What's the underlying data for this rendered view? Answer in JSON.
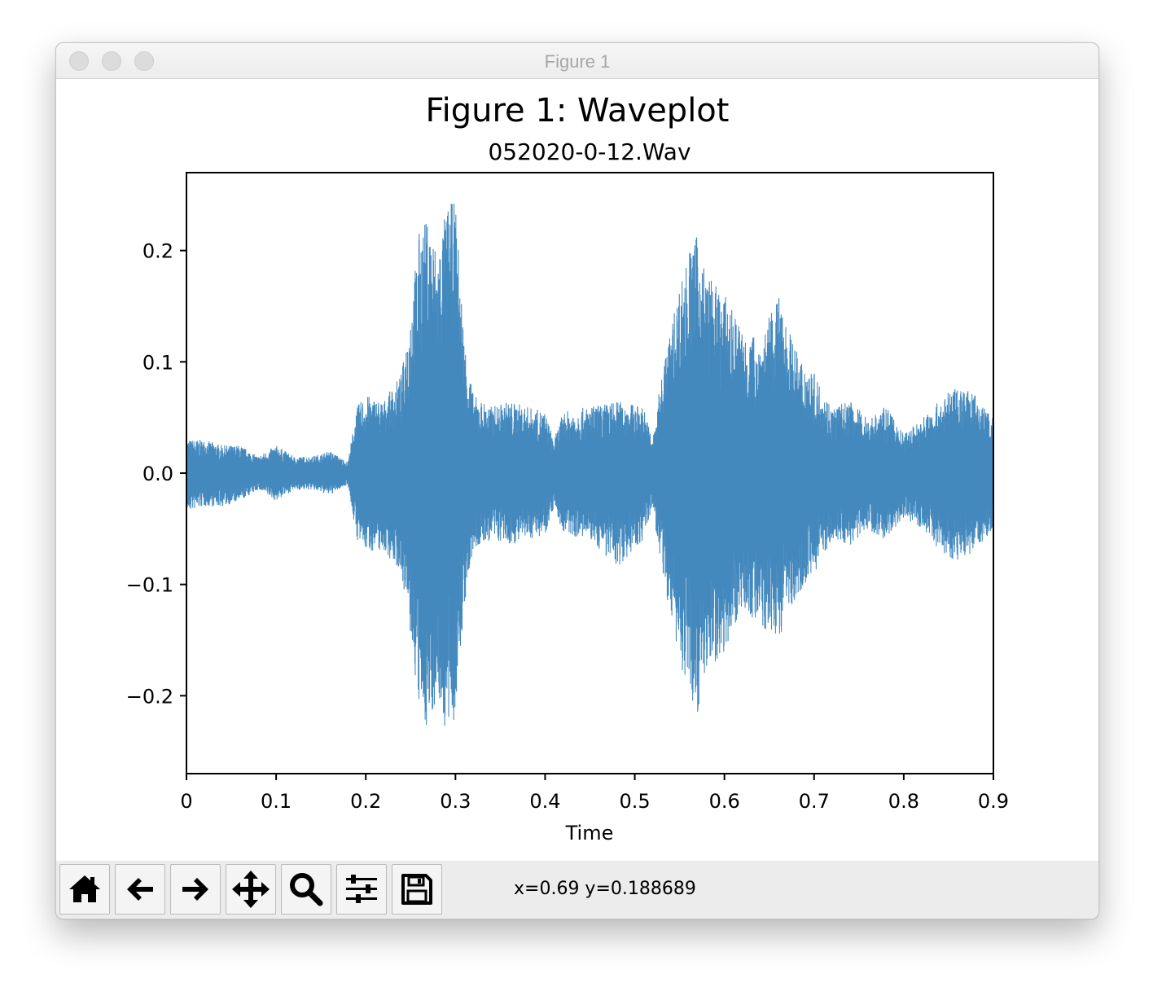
{
  "window": {
    "title": "Figure 1"
  },
  "figure": {
    "suptitle": "Figure 1: Waveplot"
  },
  "toolbar": {
    "buttons": [
      {
        "name": "home",
        "icon": "home-icon"
      },
      {
        "name": "back",
        "icon": "arrow-left-icon"
      },
      {
        "name": "forward",
        "icon": "arrow-right-icon"
      },
      {
        "name": "pan",
        "icon": "move-icon"
      },
      {
        "name": "zoom",
        "icon": "magnifier-icon"
      },
      {
        "name": "configure-subplots",
        "icon": "sliders-icon"
      },
      {
        "name": "save",
        "icon": "floppy-disk-icon"
      }
    ],
    "coordinates": "x=0.69 y=0.188689"
  },
  "chart_data": {
    "type": "line",
    "title": "052020-0-12.Wav",
    "xlabel": "Time",
    "ylabel": "",
    "xlim": [
      0,
      0.9
    ],
    "ylim": [
      -0.27,
      0.27
    ],
    "xticks": [
      "0",
      "0.1",
      "0.2",
      "0.3",
      "0.4",
      "0.5",
      "0.6",
      "0.7",
      "0.8",
      "0.9"
    ],
    "xtick_values": [
      0,
      0.1,
      0.2,
      0.3,
      0.4,
      0.5,
      0.6,
      0.7,
      0.8,
      0.9
    ],
    "yticks": [
      "−0.2",
      "−0.1",
      "0.0",
      "0.1",
      "0.2"
    ],
    "ytick_values": [
      -0.2,
      -0.1,
      0.0,
      0.1,
      0.2
    ],
    "grid": false,
    "color": "#4489be",
    "series": [
      {
        "envelope": {
          "x": [
            0.0,
            0.02,
            0.04,
            0.06,
            0.08,
            0.1,
            0.12,
            0.14,
            0.16,
            0.18,
            0.19,
            0.2,
            0.22,
            0.24,
            0.25,
            0.26,
            0.27,
            0.28,
            0.29,
            0.3,
            0.31,
            0.32,
            0.34,
            0.36,
            0.38,
            0.4,
            0.41,
            0.42,
            0.45,
            0.48,
            0.51,
            0.52,
            0.53,
            0.54,
            0.55,
            0.56,
            0.57,
            0.58,
            0.6,
            0.62,
            0.64,
            0.66,
            0.68,
            0.7,
            0.72,
            0.74,
            0.76,
            0.78,
            0.8,
            0.82,
            0.84,
            0.86,
            0.88,
            0.9
          ],
          "max": [
            0.03,
            0.03,
            0.025,
            0.025,
            0.015,
            0.025,
            0.015,
            0.015,
            0.02,
            0.01,
            0.06,
            0.07,
            0.065,
            0.09,
            0.15,
            0.22,
            0.23,
            0.2,
            0.24,
            0.245,
            0.12,
            0.07,
            0.06,
            0.065,
            0.06,
            0.055,
            0.03,
            0.055,
            0.06,
            0.065,
            0.06,
            0.03,
            0.09,
            0.13,
            0.17,
            0.2,
            0.215,
            0.18,
            0.16,
            0.13,
            0.12,
            0.16,
            0.11,
            0.09,
            0.06,
            0.065,
            0.05,
            0.06,
            0.035,
            0.05,
            0.065,
            0.08,
            0.07,
            0.05
          ],
          "min": [
            -0.035,
            -0.03,
            -0.03,
            -0.025,
            -0.015,
            -0.025,
            -0.015,
            -0.015,
            -0.02,
            -0.01,
            -0.06,
            -0.07,
            -0.07,
            -0.09,
            -0.15,
            -0.22,
            -0.23,
            -0.2,
            -0.24,
            -0.22,
            -0.12,
            -0.07,
            -0.06,
            -0.065,
            -0.06,
            -0.055,
            -0.03,
            -0.055,
            -0.06,
            -0.085,
            -0.06,
            -0.03,
            -0.09,
            -0.13,
            -0.17,
            -0.2,
            -0.215,
            -0.18,
            -0.16,
            -0.12,
            -0.14,
            -0.15,
            -0.11,
            -0.09,
            -0.06,
            -0.065,
            -0.05,
            -0.06,
            -0.04,
            -0.05,
            -0.07,
            -0.08,
            -0.07,
            -0.05
          ]
        }
      }
    ]
  }
}
